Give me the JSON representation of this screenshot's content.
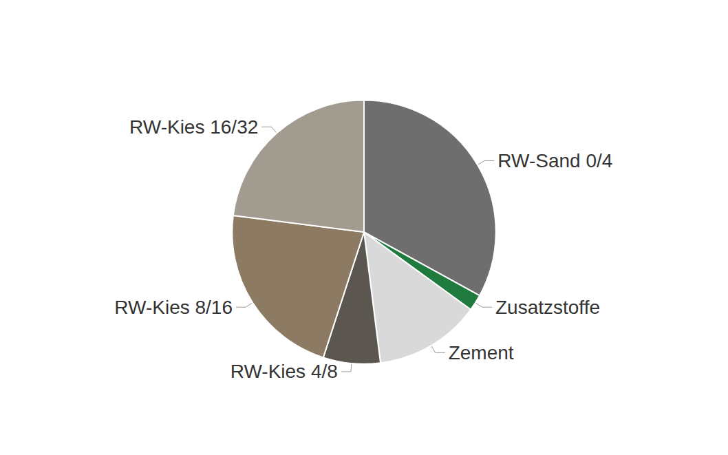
{
  "chart_data": {
    "type": "pie",
    "categories": [
      "RW-Sand 0/4",
      "Zusatzstoffe",
      "Zement",
      "RW-Kies 4/8",
      "RW-Kies 8/16",
      "RW-Kies 16/32"
    ],
    "values": [
      33,
      2,
      13,
      7,
      22,
      23
    ],
    "colors": [
      "#6e6e6e",
      "#1f7a3e",
      "#d9d9d9",
      "#5b5650",
      "#8c7b62",
      "#a29b90"
    ]
  }
}
